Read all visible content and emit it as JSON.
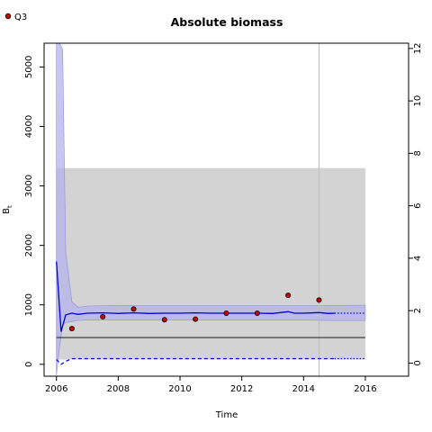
{
  "chart_data": {
    "type": "line",
    "title": "Absolute biomass",
    "xlabel": "Time",
    "ylabel": "B",
    "ylabel_subscript": "t",
    "xlim": [
      2005.6,
      2017.4
    ],
    "ylim": [
      -200,
      5400
    ],
    "y2lim": [
      -0.5,
      12.2
    ],
    "x_ticks": [
      2006,
      2008,
      2010,
      2012,
      2014,
      2016
    ],
    "y_ticks": [
      0,
      1000,
      2000,
      3000,
      4000,
      5000
    ],
    "y2_ticks": [
      0,
      2,
      4,
      6,
      8,
      10,
      12
    ],
    "grid": false,
    "legend": {
      "placement": "top-left",
      "entries": [
        {
          "label": "Q3",
          "color": "#cc0000"
        }
      ]
    },
    "colors": {
      "estimate": "#0000cd",
      "band": "#b3b3ec",
      "shade": "#d3d3d3",
      "marker": "#cc0000",
      "reference": "#000000"
    },
    "shaded_region": {
      "x": [
        2006.0,
        2016.0
      ],
      "y": [
        80,
        3300
      ]
    },
    "vertical_line_x": 2014.5,
    "reference_line_y": 450,
    "biomass_estimate": {
      "x": [
        2006.0,
        2006.15,
        2006.3,
        2006.5,
        2006.7,
        2007.0,
        2007.5,
        2008.0,
        2008.5,
        2009.0,
        2009.5,
        2010.0,
        2010.5,
        2011.0,
        2011.5,
        2012.0,
        2012.5,
        2013.0,
        2013.5,
        2013.7,
        2014.0,
        2014.5,
        2014.8,
        2015.0
      ],
      "y": [
        1730,
        550,
        830,
        860,
        840,
        860,
        865,
        855,
        865,
        855,
        860,
        860,
        865,
        860,
        860,
        860,
        860,
        855,
        885,
        860,
        860,
        870,
        855,
        860
      ]
    },
    "biomass_forecast": {
      "x": [
        2015.0,
        2016.0
      ],
      "y": [
        860,
        860
      ]
    },
    "ci_band": {
      "x": [
        2006.0,
        2006.1,
        2006.2,
        2006.3,
        2006.5,
        2006.7,
        2007.0,
        2008.0,
        2009.0,
        2010.0,
        2011.0,
        2012.0,
        2013.0,
        2014.0,
        2015.0,
        2016.0
      ],
      "upper": [
        5400,
        5400,
        5300,
        1900,
        1050,
        960,
        980,
        990,
        985,
        985,
        985,
        985,
        985,
        985,
        990,
        995
      ],
      "lower": [
        -180,
        300,
        650,
        700,
        720,
        740,
        745,
        745,
        745,
        745,
        745,
        745,
        745,
        745,
        735,
        735
      ]
    },
    "lower_dashed": {
      "x": [
        2006.0,
        2006.15,
        2006.3,
        2006.5,
        2015.0
      ],
      "y": [
        80,
        0,
        50,
        95,
        95
      ]
    },
    "lower_dashed_forecast": {
      "x": [
        2015.0,
        2016.0
      ],
      "y": [
        95,
        95
      ]
    },
    "index_points": {
      "series": "Q3",
      "x": [
        2006.5,
        2007.5,
        2008.5,
        2009.5,
        2010.5,
        2011.5,
        2012.5,
        2013.5,
        2014.5
      ],
      "y": [
        600,
        800,
        930,
        750,
        760,
        860,
        860,
        1160,
        1080
      ]
    }
  }
}
